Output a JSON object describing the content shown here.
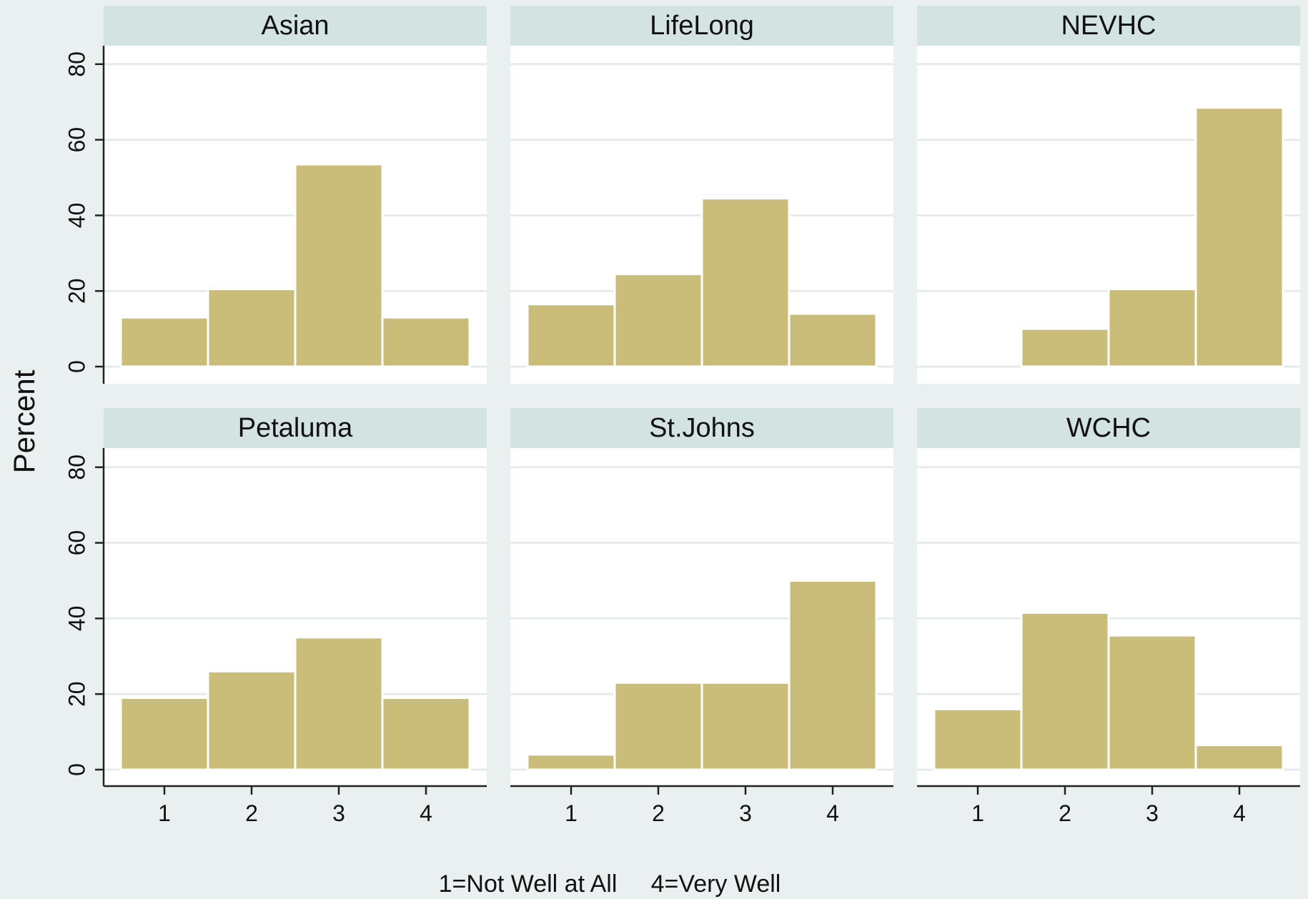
{
  "chart_data": {
    "type": "bar",
    "ylabel": "Percent",
    "note": "1=Not Well at All     4=Very Well",
    "categories": [
      "1",
      "2",
      "3",
      "4"
    ],
    "yticks": [
      "0",
      "20",
      "40",
      "60",
      "80"
    ],
    "ylim": [
      0,
      85
    ],
    "bar_color": "#c9bd79",
    "strip_color": "#d3e3e2",
    "background_color": "#eaf0f0",
    "grid": true,
    "panels": [
      {
        "title": "Asian",
        "values": [
          13,
          20.5,
          53.5,
          13
        ]
      },
      {
        "title": "LifeLong",
        "values": [
          16.5,
          24.5,
          44.5,
          14
        ]
      },
      {
        "title": "NEVHC",
        "values": [
          0,
          10,
          20.5,
          68.5
        ]
      },
      {
        "title": "Petaluma",
        "values": [
          19,
          26,
          35,
          19
        ]
      },
      {
        "title": "St.Johns",
        "values": [
          4,
          23,
          23,
          50
        ]
      },
      {
        "title": "WCHC",
        "values": [
          16,
          41.5,
          35.5,
          6.5
        ]
      }
    ]
  }
}
